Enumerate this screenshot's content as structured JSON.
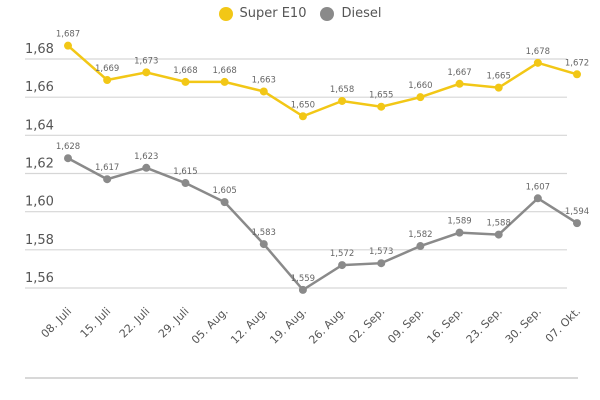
{
  "chart_data": {
    "type": "line",
    "title": "",
    "xlabel": "",
    "ylabel": "",
    "categories": [
      "08. Juli",
      "15. Juli",
      "22. Juli",
      "29. Juli",
      "05. Aug.",
      "12. Aug.",
      "19. Aug.",
      "26. Aug.",
      "02. Sep.",
      "09. Sep.",
      "16. Sep.",
      "23. Sep.",
      "30. Sep.",
      "07. Okt."
    ],
    "yticks": [
      "1,56",
      "1,58",
      "1,60",
      "1,62",
      "1,64",
      "1,66",
      "1,68"
    ],
    "ytick_values": [
      1.56,
      1.58,
      1.6,
      1.62,
      1.64,
      1.66,
      1.68
    ],
    "ylim": [
      1.56,
      1.68
    ],
    "grid": true,
    "legend_placement": "top",
    "series": [
      {
        "name": "Super E10",
        "color": "#f2c716",
        "values": [
          1.687,
          1.669,
          1.673,
          1.668,
          1.668,
          1.663,
          1.65,
          1.658,
          1.655,
          1.66,
          1.667,
          1.665,
          1.678,
          1.672
        ],
        "labels": [
          "1,687",
          "1,669",
          "1,673",
          "1,668",
          "1,668",
          "1,663",
          "1,650",
          "1,658",
          "1,655",
          "1,660",
          "1,667",
          "1,665",
          "1,678",
          "1,672"
        ]
      },
      {
        "name": "Diesel",
        "color": "#8a8a8a",
        "values": [
          1.628,
          1.617,
          1.623,
          1.615,
          1.605,
          1.583,
          1.559,
          1.572,
          1.573,
          1.582,
          1.589,
          1.588,
          1.607,
          1.594
        ],
        "labels": [
          "1,628",
          "1,617",
          "1,623",
          "1,615",
          "1,605",
          "1,583",
          "1,559",
          "1,572",
          "1,573",
          "1,582",
          "1,589",
          "1,588",
          "1,607",
          "1,594"
        ]
      }
    ]
  }
}
